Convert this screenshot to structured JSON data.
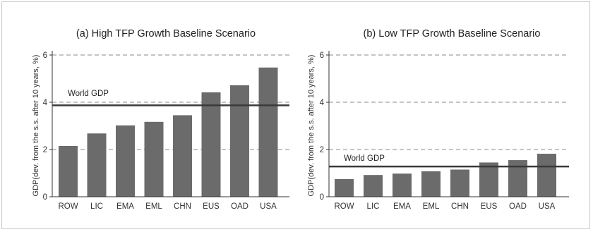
{
  "chart_data": [
    {
      "type": "bar",
      "title": "(a) High TFP Growth Baseline Scenario",
      "ylabel": "GDP(dev. from the s.s. after 10 years, %)",
      "xlabel": "",
      "categories": [
        "ROW",
        "LIC",
        "EMA",
        "EML",
        "CHN",
        "EUS",
        "OAD",
        "USA"
      ],
      "values": [
        2.15,
        2.68,
        3.02,
        3.17,
        3.45,
        4.42,
        4.72,
        5.47
      ],
      "ylim": [
        0,
        6
      ],
      "yticks": [
        "0",
        "2",
        "4",
        "6"
      ],
      "grid": "dashed horizontal",
      "reference_line": {
        "label": "World GDP",
        "value": 3.87
      },
      "bar_color": "#6b6b6b"
    },
    {
      "type": "bar",
      "title": "(b) Low TFP Growth Baseline Scenario",
      "ylabel": "GDP(dev. from the s.s. after 10 years, %)",
      "xlabel": "",
      "categories": [
        "ROW",
        "LIC",
        "EMA",
        "EML",
        "CHN",
        "EUS",
        "OAD",
        "USA"
      ],
      "values": [
        0.75,
        0.92,
        0.98,
        1.08,
        1.15,
        1.45,
        1.55,
        1.82
      ],
      "ylim": [
        0,
        6
      ],
      "yticks": [
        "0",
        "2",
        "4",
        "6"
      ],
      "grid": "dashed horizontal",
      "reference_line": {
        "label": "World GDP",
        "value": 1.28
      },
      "bar_color": "#6b6b6b"
    }
  ]
}
